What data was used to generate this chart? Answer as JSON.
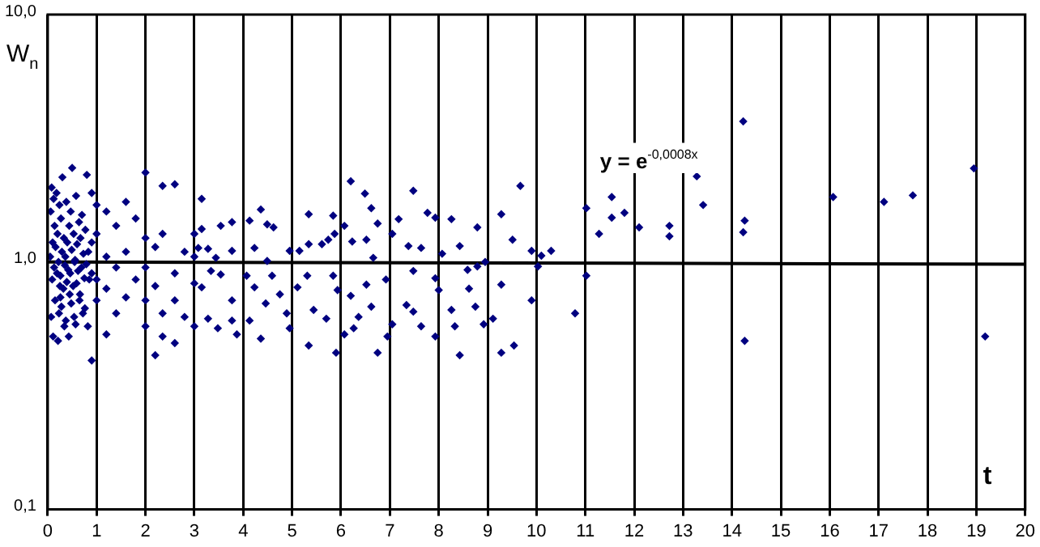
{
  "chart_data": {
    "type": "scatter",
    "xlabel": "t",
    "ylabel": "W$_{n}$",
    "annotations": [
      "y = e$^{-0,0008x}$"
    ],
    "xlim": [
      0,
      20
    ],
    "xticks": [
      0,
      1,
      2,
      3,
      4,
      5,
      6,
      7,
      8,
      9,
      10,
      11,
      12,
      13,
      14,
      15,
      16,
      17,
      18,
      19,
      20
    ],
    "ylim": [
      0.1,
      10
    ],
    "yticks": [
      {
        "value": 0.1,
        "label": "0,1"
      },
      {
        "value": 1,
        "label": "1,0"
      },
      {
        "value": 10,
        "label": "10,0"
      }
    ],
    "log": "y",
    "grid": "x",
    "legend": false,
    "marker": "diamond",
    "series": [
      {
        "color": "#000080",
        "x": [
          0.08,
          0.12,
          0.06,
          0.14,
          0.1,
          0.05,
          0.13,
          0.09,
          0.15,
          0.07,
          0.11,
          0.18,
          0.24,
          0.2,
          0.16,
          0.22,
          0.19,
          0.25,
          0.26,
          0.23,
          0.21,
          0.3,
          0.27,
          0.33,
          0.29,
          0.35,
          0.26,
          0.32,
          0.28,
          0.34,
          0.38,
          0.44,
          0.4,
          0.36,
          0.42,
          0.39,
          0.45,
          0.37,
          0.43,
          0.5,
          0.47,
          0.53,
          0.49,
          0.55,
          0.46,
          0.52,
          0.48,
          0.54,
          0.58,
          0.64,
          0.6,
          0.56,
          0.62,
          0.59,
          0.65,
          0.57,
          0.7,
          0.67,
          0.73,
          0.69,
          0.75,
          0.66,
          0.72,
          0.8,
          0.77,
          0.83,
          0.79,
          0.85,
          0.76,
          0.82,
          0.9,
          0.9,
          0.9,
          0.9,
          1.0,
          1.0,
          1.0,
          1.0,
          1.2,
          1.2,
          1.2,
          1.2,
          1.4,
          1.4,
          1.4,
          1.6,
          1.6,
          1.6,
          1.8,
          1.8,
          2.0,
          2.0,
          2.0,
          2.0,
          2.0,
          2.2,
          2.2,
          2.2,
          2.35,
          2.35,
          2.35,
          2.35,
          2.6,
          2.6,
          2.6,
          2.6,
          2.8,
          2.8,
          3.0,
          3.0,
          3.0,
          3.0,
          3.15,
          3.15,
          3.54,
          3.77,
          4.13,
          4.36,
          4.49,
          4.62,
          5.34,
          5.84,
          6.2,
          6.49,
          6.62,
          6.75,
          7.48,
          7.18,
          7.77,
          7.93,
          8.26,
          8.79,
          9.28,
          9.51,
          3.08,
          3.28,
          3.44,
          3.77,
          4.23,
          4.49,
          4.95,
          5.15,
          5.34,
          5.61,
          5.74,
          5.87,
          6.07,
          6.23,
          6.52,
          6.66,
          7.05,
          7.38,
          7.64,
          8.07,
          8.43,
          8.95,
          3.15,
          3.34,
          3.54,
          3.77,
          3.28,
          3.48,
          3.77,
          3.87,
          4.07,
          4.13,
          4.23,
          4.36,
          4.46,
          4.59,
          4.75,
          4.89,
          4.95,
          5.11,
          5.31,
          5.34,
          5.44,
          5.7,
          5.84,
          5.9,
          5.93,
          6.07,
          6.2,
          6.26,
          6.36,
          6.52,
          6.62,
          6.75,
          6.92,
          6.95,
          7.05,
          7.34,
          7.48,
          7.48,
          7.64,
          7.93,
          7.93,
          8.0,
          8.26,
          8.33,
          8.43,
          8.59,
          8.62,
          8.75,
          8.79,
          8.92,
          9.11,
          9.28,
          9.28,
          9.54,
          9.67,
          9.9,
          10.1,
          10.3,
          10.03,
          9.9,
          10.79,
          11.02,
          11.02,
          11.28,
          11.54,
          11.54,
          11.8,
          12.1,
          12.72,
          12.72,
          13.28,
          13.41,
          14.26,
          14.23,
          14.26,
          14.23,
          16.07,
          17.11,
          17.7,
          18.95,
          19.18
        ],
        "values": [
          2.0,
          1.8,
          1.6,
          1.4,
          1.2,
          1.05,
          0.95,
          0.85,
          0.7,
          0.6,
          0.5,
          1.9,
          1.7,
          1.3,
          1.15,
          1.0,
          0.9,
          0.8,
          0.72,
          0.62,
          0.48,
          2.2,
          1.5,
          1.25,
          1.1,
          0.97,
          0.88,
          0.78,
          0.66,
          0.55,
          1.75,
          1.4,
          1.2,
          1.05,
          0.93,
          0.83,
          0.74,
          0.58,
          0.5,
          2.4,
          1.6,
          1.3,
          1.12,
          1.0,
          0.9,
          0.8,
          0.68,
          0.6,
          1.85,
          1.45,
          1.18,
          1.02,
          0.92,
          0.82,
          0.7,
          0.56,
          1.55,
          1.25,
          1.08,
          0.95,
          0.86,
          0.74,
          0.62,
          2.25,
          1.35,
          1.1,
          0.98,
          0.85,
          0.65,
          0.55,
          1.9,
          1.2,
          0.9,
          0.4,
          1.7,
          1.3,
          0.85,
          0.7,
          1.6,
          1.05,
          0.78,
          0.51,
          1.4,
          0.95,
          0.62,
          1.75,
          1.1,
          0.72,
          1.5,
          0.85,
          2.3,
          1.25,
          0.95,
          0.7,
          0.55,
          1.15,
          0.8,
          0.42,
          2.03,
          1.3,
          0.62,
          0.5,
          2.06,
          0.9,
          0.7,
          0.47,
          1.1,
          0.6,
          1.3,
          1.05,
          0.82,
          0.55,
          1.8,
          1.36,
          1.4,
          1.45,
          1.47,
          1.63,
          1.42,
          1.38,
          1.56,
          1.54,
          2.12,
          1.89,
          1.65,
          1.43,
          1.94,
          1.49,
          1.58,
          1.51,
          1.49,
          1.38,
          1.56,
          1.23,
          1.14,
          1.13,
          1.04,
          1.11,
          1.14,
          1.01,
          1.11,
          1.11,
          1.18,
          1.18,
          1.23,
          1.3,
          1.4,
          1.21,
          1.23,
          1.04,
          1.3,
          1.16,
          1.14,
          1.08,
          1.16,
          1.0,
          0.79,
          0.92,
          0.89,
          0.7,
          0.59,
          0.54,
          0.58,
          0.51,
          0.88,
          0.58,
          0.79,
          0.49,
          0.68,
          0.88,
          0.74,
          0.62,
          0.54,
          0.79,
          0.88,
          0.46,
          0.64,
          0.59,
          0.88,
          0.43,
          0.77,
          0.51,
          0.73,
          0.54,
          0.6,
          0.81,
          0.66,
          0.43,
          0.85,
          0.5,
          0.56,
          0.67,
          0.92,
          0.63,
          0.55,
          0.86,
          0.5,
          0.77,
          0.64,
          0.55,
          0.42,
          0.93,
          0.78,
          0.66,
          0.96,
          0.56,
          0.59,
          0.81,
          0.43,
          0.46,
          2.03,
          1.11,
          1.06,
          1.11,
          0.96,
          0.7,
          0.62,
          1.65,
          0.88,
          1.3,
          1.83,
          1.51,
          1.58,
          1.38,
          1.4,
          1.27,
          2.22,
          1.7,
          1.47,
          1.32,
          0.48,
          3.7,
          1.83,
          1.75,
          1.86,
          2.39,
          0.5
        ]
      },
      {
        "type": "line",
        "color": "#000000",
        "x": [
          0,
          20
        ],
        "values": [
          1,
          0.98
        ],
        "marker": "none",
        "line_style": "solid"
      }
    ]
  }
}
